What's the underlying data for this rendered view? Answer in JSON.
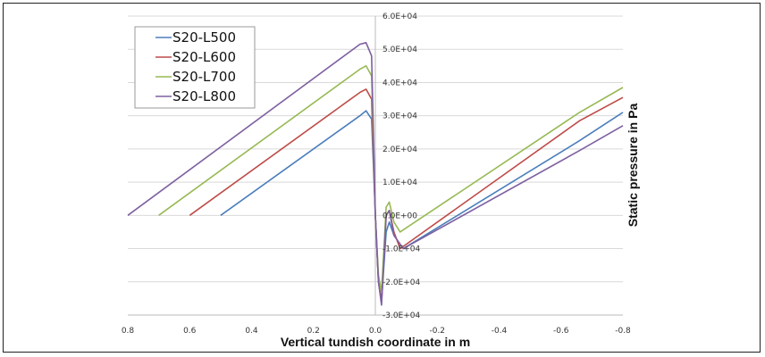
{
  "chart_data": {
    "type": "line",
    "xlabel": "Vertical tundish coordinate in m",
    "ylabel": "Static pressure in Pa",
    "xlim": [
      0.8,
      -0.8
    ],
    "x_reversed": true,
    "ylim": [
      -30000,
      60000
    ],
    "x_ticks": [
      "0.8",
      "0.6",
      "0.4",
      "0.2",
      "0.0",
      "-0.2",
      "-0.4",
      "-0.6",
      "-0.8"
    ],
    "x_tick_values": [
      0.8,
      0.6,
      0.4,
      0.2,
      0.0,
      -0.2,
      -0.4,
      -0.6,
      -0.8
    ],
    "y_ticks": [
      "6.0E+04",
      "5.0E+04",
      "4.0E+04",
      "3.0E+04",
      "2.0E+04",
      "1.0E+04",
      "0.0E+00",
      "-1.0E+04",
      "-2.0E+04",
      "-3.0E+04"
    ],
    "y_tick_values": [
      60000,
      50000,
      40000,
      30000,
      20000,
      10000,
      0,
      -10000,
      -20000,
      -30000
    ],
    "grid": "horizontal",
    "legend_position": "top-left",
    "series": [
      {
        "name": "S20-L500",
        "color": "#4a7ebb",
        "x": [
          0.5,
          0.05,
          0.03,
          0.012,
          0.0,
          -0.01,
          -0.02,
          -0.035,
          -0.045,
          -0.06,
          -0.09,
          -0.66,
          -0.8
        ],
        "y": [
          0,
          30000,
          31500,
          29000,
          0,
          -20000,
          -26000,
          -5000,
          -2000,
          -6000,
          -10000,
          22500,
          31000
        ]
      },
      {
        "name": "S20-L600",
        "color": "#be4b48",
        "x": [
          0.6,
          0.05,
          0.03,
          0.012,
          0.0,
          -0.01,
          -0.02,
          -0.035,
          -0.045,
          -0.06,
          -0.08,
          -0.66,
          -0.8
        ],
        "y": [
          0,
          37000,
          38000,
          35000,
          0,
          -20000,
          -26000,
          0,
          1500,
          -5000,
          -10000,
          28500,
          35500
        ]
      },
      {
        "name": "S20-L700",
        "color": "#98b954",
        "x": [
          0.7,
          0.05,
          0.03,
          0.012,
          0.0,
          -0.01,
          -0.02,
          -0.035,
          -0.045,
          -0.06,
          -0.08,
          -0.66,
          -0.8
        ],
        "y": [
          0,
          44000,
          45000,
          42000,
          0,
          -18000,
          -23000,
          2500,
          4000,
          -2000,
          -5000,
          31000,
          38500
        ]
      },
      {
        "name": "S20-L800",
        "color": "#7d60a0",
        "x": [
          0.8,
          0.05,
          0.03,
          0.012,
          0.0,
          -0.01,
          -0.02,
          -0.035,
          -0.045,
          -0.06,
          -0.09,
          -0.66,
          -0.8
        ],
        "y": [
          0,
          51500,
          52000,
          48000,
          0,
          -20000,
          -27000,
          0,
          1500,
          -6000,
          -10000,
          19500,
          27000
        ]
      }
    ]
  }
}
